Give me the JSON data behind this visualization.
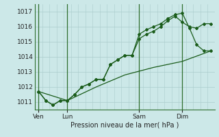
{
  "background_color": "#cce8e8",
  "grid_color": "#aacccc",
  "line_color": "#1a5c1a",
  "title": "Pression niveau de la mer( hPa )",
  "ylim": [
    1010.5,
    1017.5
  ],
  "yticks": [
    1011,
    1012,
    1013,
    1014,
    1015,
    1016,
    1017
  ],
  "xtick_labels": [
    "Ven",
    "Lun",
    "Sam",
    "Dim"
  ],
  "xtick_positions": [
    0,
    4,
    14,
    20
  ],
  "xlim": [
    -0.5,
    24.5
  ],
  "vline_positions": [
    0,
    4,
    14,
    20
  ],
  "series1_x": [
    0,
    1,
    2,
    3,
    4,
    5,
    6,
    7,
    8,
    9,
    10,
    11,
    12,
    13,
    14,
    15,
    16,
    17,
    18,
    19,
    20,
    21,
    22,
    23,
    24
  ],
  "series1_y": [
    1011.7,
    1011.1,
    1010.8,
    1011.1,
    1011.1,
    1011.5,
    1012.0,
    1012.2,
    1012.5,
    1012.5,
    1013.5,
    1013.8,
    1014.1,
    1014.1,
    1015.2,
    1015.5,
    1015.7,
    1016.0,
    1016.4,
    1016.7,
    1016.3,
    1016.0,
    1015.9,
    1016.2,
    1016.2
  ],
  "series2_x": [
    0,
    1,
    2,
    3,
    4,
    5,
    6,
    7,
    8,
    9,
    10,
    11,
    12,
    13,
    14,
    15,
    16,
    17,
    18,
    19,
    20,
    21,
    22,
    23,
    24
  ],
  "series2_y": [
    1011.7,
    1011.1,
    1010.8,
    1011.1,
    1011.1,
    1011.5,
    1012.0,
    1012.2,
    1012.5,
    1012.5,
    1013.5,
    1013.8,
    1014.1,
    1014.1,
    1015.5,
    1015.8,
    1016.0,
    1016.2,
    1016.55,
    1016.8,
    1016.9,
    1015.9,
    1014.8,
    1014.4,
    1014.4
  ],
  "series3_x": [
    0,
    4,
    8,
    12,
    16,
    20,
    24
  ],
  "series3_y": [
    1011.7,
    1011.1,
    1012.0,
    1012.8,
    1013.3,
    1013.7,
    1014.4
  ]
}
